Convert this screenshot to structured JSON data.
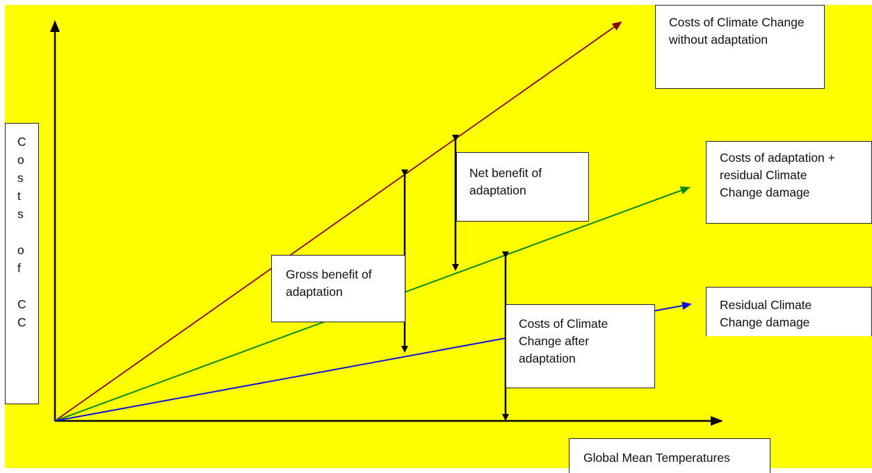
{
  "colors": {
    "background": "#ffff00",
    "axes": "#000000",
    "without_adaptation_line": "#8b0000",
    "with_adaptation_line": "#0a8a0a",
    "residual_line": "#1010e0",
    "arrow": "#000000"
  },
  "axes": {
    "y_label": "Costs of CC",
    "x_label": "Global Mean Temperatures"
  },
  "lines": {
    "without_adaptation": "Costs of Climate Change without adaptation",
    "with_adaptation": "Costs of adaptation + residual Climate Change damage",
    "residual": "Residual Climate Change damage"
  },
  "annotations": {
    "net_benefit": "Net benefit of adaptation",
    "gross_benefit": "Gross benefit of adaptation",
    "after_adaptation": "Costs of Climate Change after adaptation"
  }
}
